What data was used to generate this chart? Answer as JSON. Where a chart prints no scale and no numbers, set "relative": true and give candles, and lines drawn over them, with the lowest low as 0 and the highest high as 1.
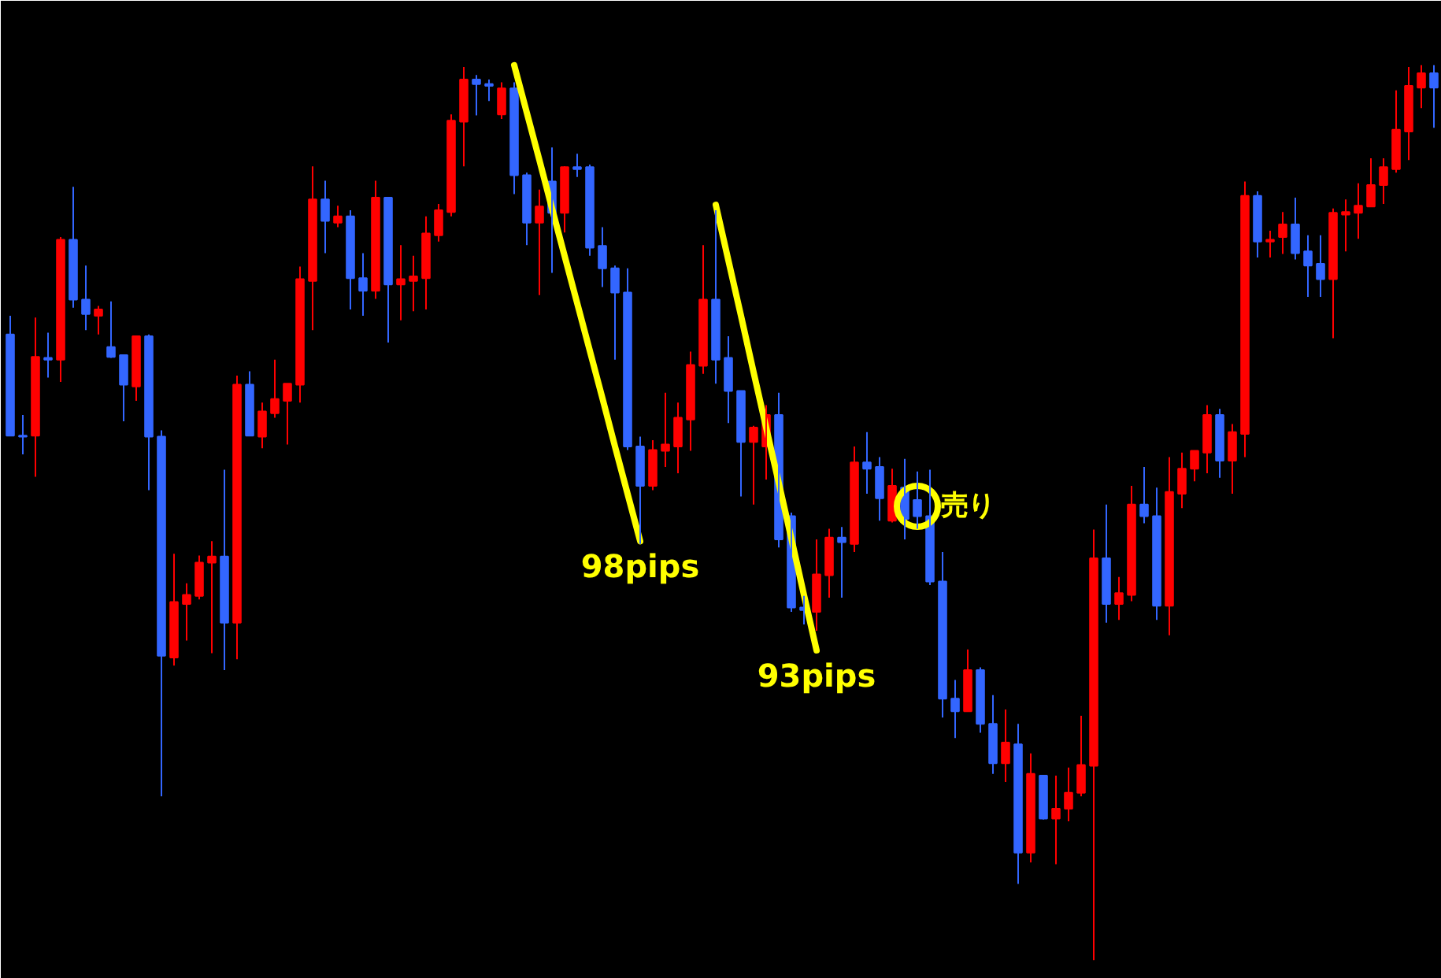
{
  "chart_data": {
    "type": "candlestick",
    "relative": true,
    "grid": false,
    "tick_labels": false,
    "categories": [
      null,
      null,
      null,
      null,
      null,
      null,
      null,
      null,
      null,
      null,
      null,
      null,
      null,
      null,
      null,
      null,
      null,
      null,
      null,
      null,
      null,
      null,
      null,
      null,
      null,
      null,
      null,
      null,
      null,
      null,
      null,
      null,
      null,
      null,
      null,
      null,
      null,
      null,
      null,
      null,
      null,
      null,
      null,
      null,
      null,
      null,
      null,
      null,
      null,
      null,
      null,
      null,
      null,
      null,
      null,
      null,
      null,
      null,
      null,
      null,
      null,
      null,
      null,
      null,
      null,
      null,
      null,
      null,
      null,
      null,
      null,
      null,
      null,
      null,
      null,
      null,
      null,
      null,
      null,
      null,
      null,
      null,
      null,
      null,
      null,
      null,
      null,
      null,
      null,
      null,
      null,
      null,
      null,
      null,
      null,
      null,
      null,
      null,
      null,
      null,
      null,
      null,
      null,
      null,
      null,
      null,
      null,
      null,
      null,
      null,
      null,
      null,
      null,
      null
    ],
    "ohlc": [
      [
        0.699,
        0.72,
        0.586,
        0.586
      ],
      [
        0.586,
        0.609,
        0.565,
        0.585
      ],
      [
        0.586,
        0.718,
        0.54,
        0.674
      ],
      [
        0.673,
        0.701,
        0.651,
        0.671
      ],
      [
        0.671,
        0.808,
        0.646,
        0.805
      ],
      [
        0.805,
        0.864,
        0.729,
        0.738
      ],
      [
        0.738,
        0.776,
        0.704,
        0.722
      ],
      [
        0.72,
        0.731,
        0.699,
        0.727
      ],
      [
        0.685,
        0.736,
        0.673,
        0.674
      ],
      [
        0.676,
        0.676,
        0.602,
        0.643
      ],
      [
        0.641,
        0.697,
        0.625,
        0.697
      ],
      [
        0.697,
        0.699,
        0.525,
        0.585
      ],
      [
        0.585,
        0.592,
        0.183,
        0.34
      ],
      [
        0.338,
        0.454,
        0.329,
        0.4
      ],
      [
        0.398,
        0.421,
        0.357,
        0.408
      ],
      [
        0.407,
        0.452,
        0.403,
        0.444
      ],
      [
        0.444,
        0.468,
        0.343,
        0.451
      ],
      [
        0.451,
        0.548,
        0.324,
        0.377
      ],
      [
        0.377,
        0.653,
        0.336,
        0.643
      ],
      [
        0.643,
        0.658,
        0.586,
        0.586
      ],
      [
        0.585,
        0.623,
        0.572,
        0.613
      ],
      [
        0.611,
        0.671,
        0.606,
        0.627
      ],
      [
        0.625,
        0.644,
        0.576,
        0.644
      ],
      [
        0.643,
        0.775,
        0.623,
        0.761
      ],
      [
        0.759,
        0.887,
        0.704,
        0.85
      ],
      [
        0.85,
        0.871,
        0.79,
        0.826
      ],
      [
        0.824,
        0.843,
        0.819,
        0.831
      ],
      [
        0.831,
        0.838,
        0.727,
        0.762
      ],
      [
        0.762,
        0.79,
        0.72,
        0.748
      ],
      [
        0.748,
        0.871,
        0.739,
        0.852
      ],
      [
        0.852,
        0.852,
        0.69,
        0.755
      ],
      [
        0.755,
        0.799,
        0.715,
        0.761
      ],
      [
        0.759,
        0.787,
        0.725,
        0.764
      ],
      [
        0.762,
        0.831,
        0.727,
        0.812
      ],
      [
        0.81,
        0.845,
        0.803,
        0.838
      ],
      [
        0.836,
        0.945,
        0.831,
        0.938
      ],
      [
        0.937,
        0.998,
        0.887,
        0.984
      ],
      [
        0.984,
        0.989,
        0.944,
        0.979
      ],
      [
        0.979,
        0.984,
        0.96,
        0.977
      ],
      [
        0.945,
        0.981,
        0.94,
        0.974
      ],
      [
        0.974,
        0.981,
        0.856,
        0.877
      ],
      [
        0.877,
        0.88,
        0.799,
        0.824
      ],
      [
        0.824,
        0.861,
        0.743,
        0.842
      ],
      [
        0.87,
        0.908,
        0.768,
        0.835
      ],
      [
        0.835,
        0.887,
        0.813,
        0.886
      ],
      [
        0.886,
        0.901,
        0.875,
        0.884
      ],
      [
        0.886,
        0.889,
        0.787,
        0.796
      ],
      [
        0.798,
        0.819,
        0.752,
        0.773
      ],
      [
        0.773,
        0.776,
        0.671,
        0.746
      ],
      [
        0.746,
        0.773,
        0.57,
        0.574
      ],
      [
        0.574,
        0.585,
        0.465,
        0.53
      ],
      [
        0.53,
        0.581,
        0.525,
        0.57
      ],
      [
        0.569,
        0.634,
        0.551,
        0.576
      ],
      [
        0.574,
        0.623,
        0.544,
        0.606
      ],
      [
        0.604,
        0.68,
        0.569,
        0.665
      ],
      [
        0.664,
        0.799,
        0.655,
        0.738
      ],
      [
        0.738,
        0.838,
        0.644,
        0.671
      ],
      [
        0.673,
        0.697,
        0.6,
        0.636
      ],
      [
        0.636,
        0.636,
        0.518,
        0.579
      ],
      [
        0.579,
        0.597,
        0.509,
        0.595
      ],
      [
        0.574,
        0.62,
        0.537,
        0.609
      ],
      [
        0.609,
        0.634,
        0.461,
        0.47
      ],
      [
        0.496,
        0.5,
        0.389,
        0.394
      ],
      [
        0.394,
        0.407,
        0.375,
        0.391
      ],
      [
        0.389,
        0.47,
        0.368,
        0.431
      ],
      [
        0.43,
        0.482,
        0.405,
        0.472
      ],
      [
        0.472,
        0.484,
        0.405,
        0.467
      ],
      [
        0.465,
        0.574,
        0.456,
        0.556
      ],
      [
        0.556,
        0.59,
        0.521,
        0.549
      ],
      [
        0.551,
        0.562,
        0.491,
        0.516
      ],
      [
        0.491,
        0.549,
        0.489,
        0.53
      ],
      [
        0.528,
        0.56,
        0.47,
        0.493
      ],
      [
        0.514,
        0.546,
        0.482,
        0.496
      ],
      [
        0.496,
        0.548,
        0.419,
        0.423
      ],
      [
        0.423,
        0.456,
        0.271,
        0.292
      ],
      [
        0.292,
        0.313,
        0.248,
        0.278
      ],
      [
        0.278,
        0.347,
        0.278,
        0.324
      ],
      [
        0.324,
        0.327,
        0.254,
        0.264
      ],
      [
        0.264,
        0.296,
        0.208,
        0.22
      ],
      [
        0.22,
        0.28,
        0.199,
        0.243
      ],
      [
        0.241,
        0.264,
        0.085,
        0.12
      ],
      [
        0.12,
        0.231,
        0.109,
        0.208
      ],
      [
        0.206,
        0.206,
        0.157,
        0.158
      ],
      [
        0.158,
        0.206,
        0.107,
        0.169
      ],
      [
        0.169,
        0.215,
        0.155,
        0.187
      ],
      [
        0.187,
        0.273,
        0.183,
        0.218
      ],
      [
        0.217,
        0.481,
        0.0,
        0.449
      ],
      [
        0.449,
        0.509,
        0.377,
        0.398
      ],
      [
        0.398,
        0.428,
        0.38,
        0.41
      ],
      [
        0.408,
        0.53,
        0.401,
        0.509
      ],
      [
        0.509,
        0.551,
        0.488,
        0.496
      ],
      [
        0.496,
        0.528,
        0.38,
        0.396
      ],
      [
        0.396,
        0.562,
        0.363,
        0.523
      ],
      [
        0.521,
        0.567,
        0.505,
        0.549
      ],
      [
        0.549,
        0.569,
        0.535,
        0.569
      ],
      [
        0.567,
        0.62,
        0.544,
        0.609
      ],
      [
        0.609,
        0.616,
        0.539,
        0.558
      ],
      [
        0.558,
        0.599,
        0.521,
        0.59
      ],
      [
        0.588,
        0.87,
        0.562,
        0.854
      ],
      [
        0.854,
        0.859,
        0.785,
        0.803
      ],
      [
        0.803,
        0.815,
        0.785,
        0.805
      ],
      [
        0.808,
        0.836,
        0.789,
        0.822
      ],
      [
        0.822,
        0.852,
        0.783,
        0.79
      ],
      [
        0.792,
        0.81,
        0.741,
        0.776
      ],
      [
        0.778,
        0.81,
        0.741,
        0.761
      ],
      [
        0.761,
        0.84,
        0.695,
        0.835
      ],
      [
        0.833,
        0.85,
        0.792,
        0.836
      ],
      [
        0.835,
        0.868,
        0.806,
        0.843
      ],
      [
        0.842,
        0.896,
        0.842,
        0.866
      ],
      [
        0.866,
        0.896,
        0.845,
        0.886
      ],
      [
        0.884,
        0.972,
        0.88,
        0.928
      ],
      [
        0.926,
        0.998,
        0.894,
        0.977
      ],
      [
        0.975,
        1.0,
        0.952,
        0.991
      ],
      [
        0.991,
        1.0,
        0.93,
        0.975
      ]
    ],
    "colors": [
      "#3366ff",
      "#3366ff",
      "#ff0000",
      "#3366ff",
      "#ff0000",
      "#3366ff",
      "#3366ff",
      "#ff0000",
      "#3366ff",
      "#3366ff",
      "#ff0000",
      "#3366ff",
      "#3366ff",
      "#ff0000",
      "#ff0000",
      "#ff0000",
      "#ff0000",
      "#3366ff",
      "#ff0000",
      "#3366ff",
      "#ff0000",
      "#ff0000",
      "#ff0000",
      "#ff0000",
      "#ff0000",
      "#3366ff",
      "#ff0000",
      "#3366ff",
      "#3366ff",
      "#ff0000",
      "#3366ff",
      "#ff0000",
      "#ff0000",
      "#ff0000",
      "#ff0000",
      "#ff0000",
      "#ff0000",
      "#3366ff",
      "#3366ff",
      "#ff0000",
      "#3366ff",
      "#3366ff",
      "#ff0000",
      "#3366ff",
      "#ff0000",
      "#3366ff",
      "#3366ff",
      "#3366ff",
      "#3366ff",
      "#3366ff",
      "#3366ff",
      "#ff0000",
      "#ff0000",
      "#ff0000",
      "#ff0000",
      "#ff0000",
      "#3366ff",
      "#3366ff",
      "#3366ff",
      "#ff0000",
      "#ff0000",
      "#3366ff",
      "#3366ff",
      "#3366ff",
      "#ff0000",
      "#ff0000",
      "#3366ff",
      "#ff0000",
      "#3366ff",
      "#3366ff",
      "#ff0000",
      "#3366ff",
      "#3366ff",
      "#3366ff",
      "#3366ff",
      "#3366ff",
      "#ff0000",
      "#3366ff",
      "#3366ff",
      "#ff0000",
      "#3366ff",
      "#ff0000",
      "#3366ff",
      "#ff0000",
      "#ff0000",
      "#ff0000",
      "#ff0000",
      "#3366ff",
      "#ff0000",
      "#ff0000",
      "#3366ff",
      "#3366ff",
      "#ff0000",
      "#ff0000",
      "#ff0000",
      "#ff0000",
      "#3366ff",
      "#ff0000",
      "#ff0000",
      "#3366ff",
      "#ff0000",
      "#ff0000",
      "#3366ff",
      "#3366ff",
      "#3366ff",
      "#ff0000",
      "#ff0000",
      "#ff0000",
      "#ff0000",
      "#ff0000",
      "#ff0000",
      "#ff0000",
      "#ff0000",
      "#3366ff"
    ],
    "series": [
      {
        "type": "line",
        "name": "98pips",
        "color": "#ffff00",
        "line_style": "solid",
        "values": [
          null,
          null,
          null,
          null,
          null,
          null,
          null,
          null,
          null,
          null,
          null,
          null,
          null,
          null,
          null,
          null,
          null,
          null,
          null,
          null,
          null,
          null,
          null,
          null,
          null,
          null,
          null,
          null,
          null,
          null,
          null,
          null,
          null,
          null,
          null,
          null,
          null,
          null,
          null,
          null,
          1.0,
          0.947,
          0.894,
          0.84,
          0.787,
          0.734,
          0.681,
          0.628,
          0.574,
          0.521,
          0.468,
          null,
          null,
          null,
          null,
          null,
          null,
          null,
          null,
          null,
          null,
          null,
          null,
          null,
          null,
          null,
          null,
          null,
          null,
          null,
          null,
          null,
          null,
          null,
          null,
          null,
          null,
          null,
          null,
          null,
          null,
          null,
          null,
          null,
          null,
          null,
          null,
          null,
          null,
          null,
          null,
          null,
          null,
          null,
          null,
          null,
          null,
          null,
          null,
          null,
          null,
          null,
          null,
          null,
          null,
          null,
          null,
          null,
          null,
          null,
          null,
          null,
          null,
          null
        ]
      },
      {
        "type": "line",
        "name": "93pips",
        "color": "#ffff00",
        "line_style": "solid",
        "values": [
          null,
          null,
          null,
          null,
          null,
          null,
          null,
          null,
          null,
          null,
          null,
          null,
          null,
          null,
          null,
          null,
          null,
          null,
          null,
          null,
          null,
          null,
          null,
          null,
          null,
          null,
          null,
          null,
          null,
          null,
          null,
          null,
          null,
          null,
          null,
          null,
          null,
          null,
          null,
          null,
          null,
          null,
          null,
          null,
          null,
          null,
          null,
          null,
          null,
          null,
          null,
          null,
          null,
          null,
          null,
          null,
          0.844,
          0.782,
          0.72,
          0.657,
          0.595,
          0.533,
          0.471,
          0.408,
          0.346,
          null,
          null,
          null,
          null,
          null,
          null,
          null,
          null,
          null,
          null,
          null,
          null,
          null,
          null,
          null,
          null,
          null,
          null,
          null,
          null,
          null,
          null,
          null,
          null,
          null,
          null,
          null,
          null,
          null,
          null,
          null,
          null,
          null,
          null,
          null,
          null,
          null,
          null,
          null,
          null,
          null,
          null,
          null,
          null,
          null,
          null,
          null,
          null,
          null
        ]
      },
      {
        "type": "scatter",
        "name": "売り",
        "color": "#ffff00",
        "marker": "circle",
        "values": [
          null,
          null,
          null,
          null,
          null,
          null,
          null,
          null,
          null,
          null,
          null,
          null,
          null,
          null,
          null,
          null,
          null,
          null,
          null,
          null,
          null,
          null,
          null,
          null,
          null,
          null,
          null,
          null,
          null,
          null,
          null,
          null,
          null,
          null,
          null,
          null,
          null,
          null,
          null,
          null,
          null,
          null,
          null,
          null,
          null,
          null,
          null,
          null,
          null,
          null,
          null,
          null,
          null,
          null,
          null,
          null,
          null,
          null,
          null,
          null,
          null,
          null,
          null,
          null,
          null,
          null,
          null,
          null,
          null,
          null,
          null,
          null,
          0.507,
          null,
          null,
          null,
          null,
          null,
          null,
          null,
          null,
          null,
          null,
          null,
          null,
          null,
          null,
          null,
          null,
          null,
          null,
          null,
          null,
          null,
          null,
          null,
          null,
          null,
          null,
          null,
          null,
          null,
          null,
          null,
          null,
          null,
          null,
          null,
          null,
          null,
          null,
          null,
          null,
          null
        ]
      }
    ]
  }
}
